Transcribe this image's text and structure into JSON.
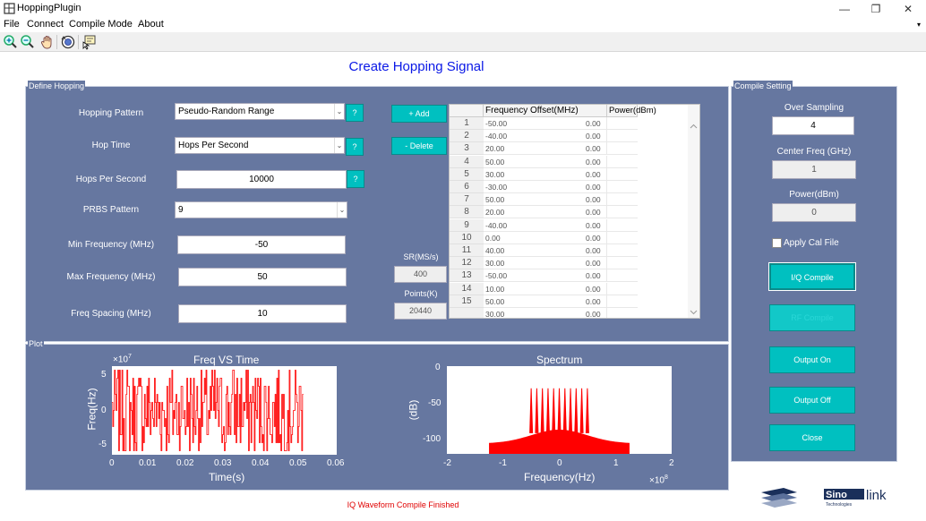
{
  "window": {
    "title": "HoppingPlugin",
    "minimize": "—",
    "restore": "❐",
    "close": "✕"
  },
  "menu": {
    "items": [
      "File",
      "Connect",
      "Compile Mode",
      "About"
    ],
    "chevron": "▾"
  },
  "toolbar": {
    "icons": [
      "zoom-in-icon",
      "zoom-out-icon",
      "pan-hand-icon",
      "rotate-3d-icon",
      "data-cursor-icon"
    ]
  },
  "page_title": "Create Hopping Signal",
  "define_hopping": {
    "panel_title": "Define Hopping",
    "hopping_pattern": {
      "label": "Hopping Pattern",
      "value": "Pseudo-Random Range",
      "help": "?"
    },
    "hop_time": {
      "label": "Hop Time",
      "value": "Hops Per Second",
      "help": "?"
    },
    "hops_per_second": {
      "label": "Hops Per Second",
      "value": "10000",
      "help": "?"
    },
    "prbs_pattern": {
      "label": "PRBS Pattern",
      "value": "9"
    },
    "min_freq": {
      "label": "Min Frequency (MHz)",
      "value": "-50"
    },
    "max_freq": {
      "label": "Max Frequency (MHz)",
      "value": "50"
    },
    "freq_spacing": {
      "label": "Freq Spacing (MHz)",
      "value": "10"
    },
    "add_button": "+ Add",
    "delete_button": "- Delete",
    "sr": {
      "label": "SR(MS/s)",
      "value": "400"
    },
    "points": {
      "label": "Points(K)",
      "value": "20440"
    },
    "table": {
      "headers": [
        "Frequency Offset(MHz)",
        "Power(dBm)"
      ],
      "rows": [
        {
          "idx": "1",
          "freq": "-50.00",
          "power": "0.00"
        },
        {
          "idx": "2",
          "freq": "-40.00",
          "power": "0.00"
        },
        {
          "idx": "3",
          "freq": "20.00",
          "power": "0.00"
        },
        {
          "idx": "4",
          "freq": "50.00",
          "power": "0.00"
        },
        {
          "idx": "5",
          "freq": "30.00",
          "power": "0.00"
        },
        {
          "idx": "6",
          "freq": "-30.00",
          "power": "0.00"
        },
        {
          "idx": "7",
          "freq": "50.00",
          "power": "0.00"
        },
        {
          "idx": "8",
          "freq": "20.00",
          "power": "0.00"
        },
        {
          "idx": "9",
          "freq": "-40.00",
          "power": "0.00"
        },
        {
          "idx": "10",
          "freq": "0.00",
          "power": "0.00"
        },
        {
          "idx": "11",
          "freq": "40.00",
          "power": "0.00"
        },
        {
          "idx": "12",
          "freq": "30.00",
          "power": "0.00"
        },
        {
          "idx": "13",
          "freq": "-50.00",
          "power": "0.00"
        },
        {
          "idx": "14",
          "freq": "10.00",
          "power": "0.00"
        },
        {
          "idx": "15",
          "freq": "50.00",
          "power": "0.00"
        },
        {
          "idx": "",
          "freq": "30.00",
          "power": "0.00"
        }
      ]
    }
  },
  "compile_setting": {
    "panel_title": "Compile Setting",
    "over_sampling": {
      "label": "Over Sampling",
      "value": "4"
    },
    "center_freq": {
      "label": "Center Freq (GHz)",
      "value": "1"
    },
    "power": {
      "label": "Power(dBm)",
      "value": "0"
    },
    "apply_cal": "Apply Cal File",
    "iq_compile": "I/Q Compile",
    "rf_compile": "RF Compile",
    "output_on": "Output On",
    "output_off": "Output Off",
    "close": "Close"
  },
  "plot": {
    "panel_title": "Plot",
    "freq_chart": {
      "title": "Freq VS Time",
      "xlabel": "Time(s)",
      "ylabel": "Freq(Hz)",
      "multiplier": "×10",
      "multiplier_exp": "7",
      "xticks": [
        "0",
        "0.01",
        "0.02",
        "0.03",
        "0.04",
        "0.05",
        "0.06"
      ],
      "yticks": [
        "5",
        "0",
        "-5"
      ]
    },
    "spectrum_chart": {
      "title": "Spectrum",
      "xlabel": "Frequency(Hz)",
      "ylabel": "(dB)",
      "multiplier": "×10",
      "multiplier_exp": "8",
      "xticks": [
        "-2",
        "-1",
        "0",
        "1",
        "2"
      ],
      "yticks": [
        "0",
        "-50",
        "-100"
      ]
    }
  },
  "chart_data": [
    {
      "type": "line",
      "title": "Freq VS Time",
      "xlabel": "Time(s)",
      "ylabel": "Freq(Hz)",
      "xlim": [
        0,
        0.06
      ],
      "ylim": [
        -55000000.0,
        55000000.0
      ],
      "series": [
        {
          "color": "#ff0000",
          "x": [
            0,
            0.0511
          ],
          "y_levels_MHz": [
            -50,
            -40,
            -30,
            -20,
            -10,
            0,
            10,
            20,
            30,
            40,
            50
          ]
        }
      ]
    },
    {
      "type": "area",
      "title": "Spectrum",
      "xlabel": "Frequency(Hz)",
      "ylabel": "(dB)",
      "xlim": [
        -200000000.0,
        200000000.0
      ],
      "ylim": [
        -115,
        12
      ],
      "series": [
        {
          "color": "#ff0000",
          "tone_freqs_MHz": [
            -50,
            -40,
            -30,
            -20,
            -10,
            0,
            10,
            20,
            30,
            40,
            50
          ],
          "tone_peak_dB": -20,
          "floor_dB": -115
        }
      ]
    }
  ],
  "status": "IQ Waveform Compile Finished",
  "logo": {
    "wordmark": "Sinolink",
    "tagline": "Technologies"
  }
}
